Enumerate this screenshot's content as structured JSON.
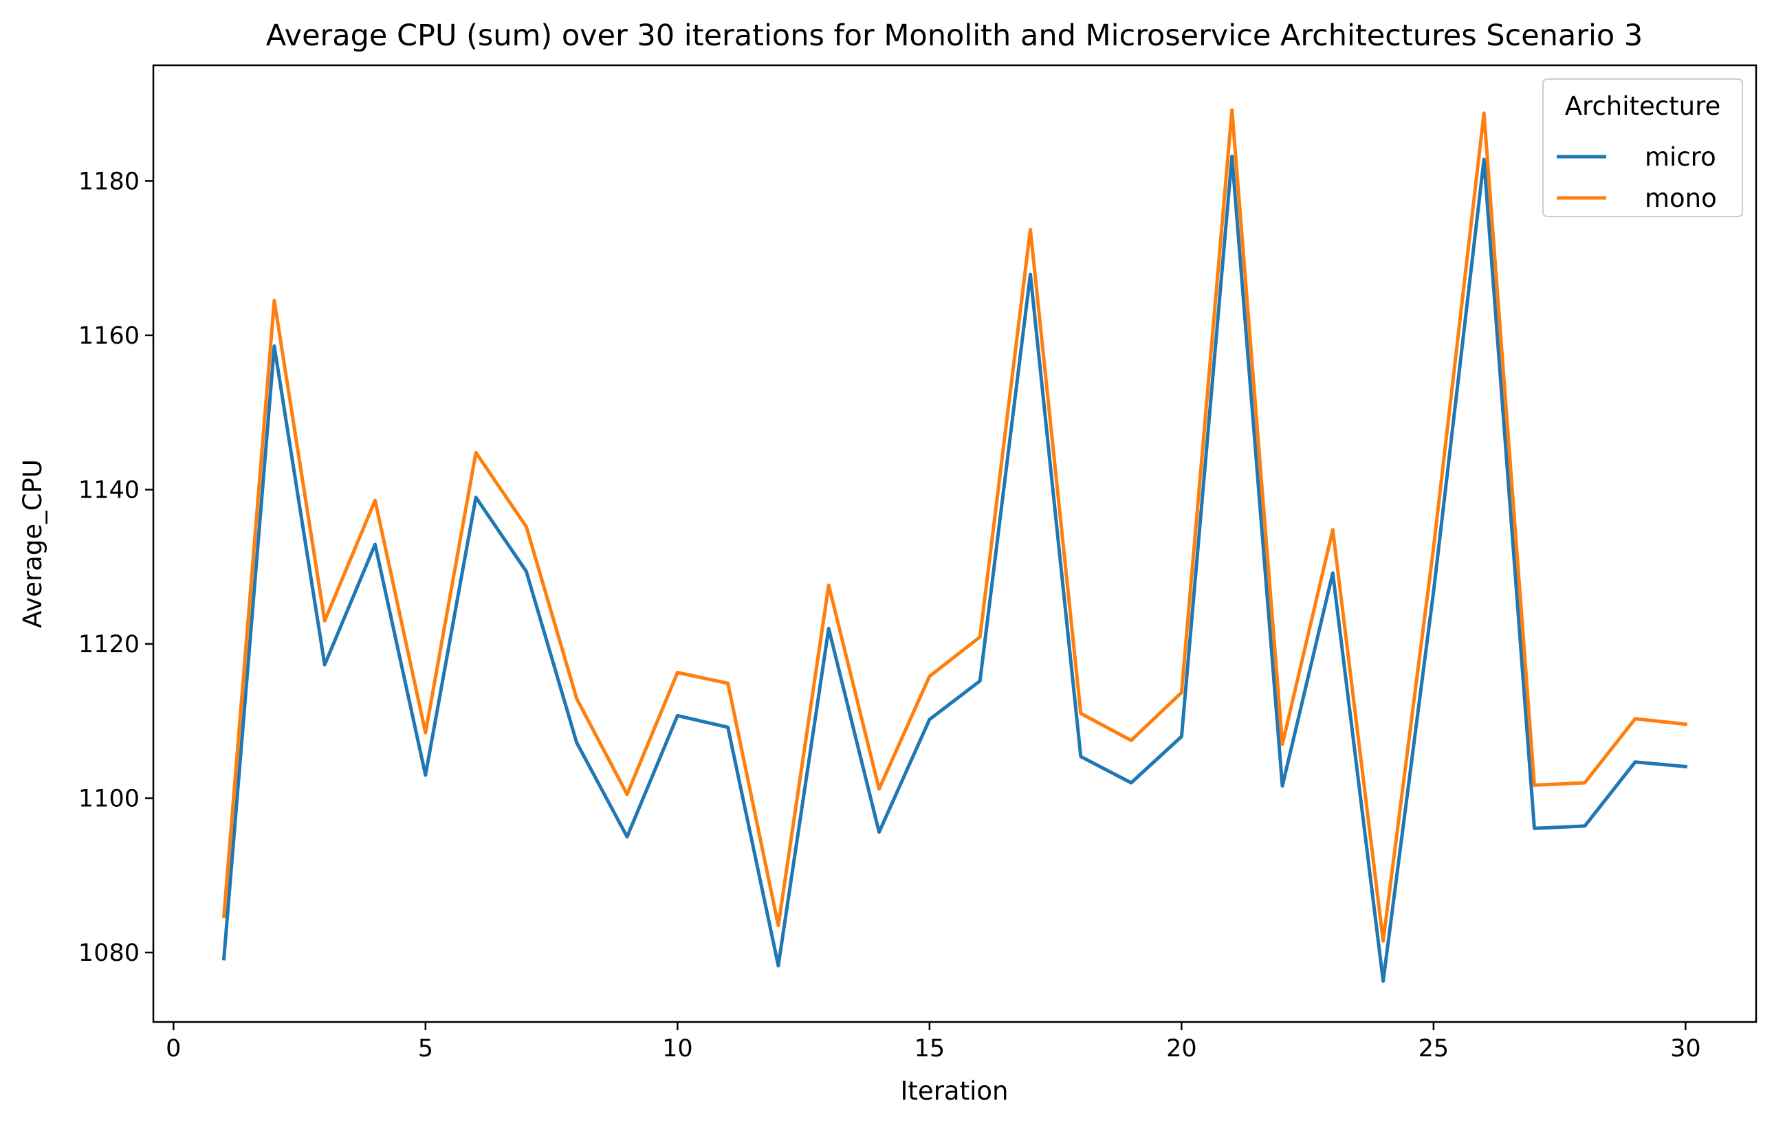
{
  "chart_data": {
    "type": "line",
    "title": "Average CPU (sum) over 30 iterations for Monolith and Microservice Architectures Scenario 3",
    "xlabel": "Iteration",
    "ylabel": "Average_CPU",
    "xlim": [
      -0.4,
      31.4
    ],
    "ylim": [
      1071,
      1195
    ],
    "xticks": [
      0,
      5,
      10,
      15,
      20,
      25,
      30
    ],
    "yticks": [
      1080,
      1100,
      1120,
      1140,
      1160,
      1180
    ],
    "grid": false,
    "legend": {
      "title": "Architecture",
      "placement": "top-right"
    },
    "x": [
      1,
      2,
      3,
      4,
      5,
      6,
      7,
      8,
      9,
      10,
      11,
      12,
      13,
      14,
      15,
      16,
      17,
      18,
      19,
      20,
      21,
      22,
      23,
      24,
      25,
      26,
      27,
      28,
      29,
      30
    ],
    "series": [
      {
        "name": "micro",
        "color": "#1f77b4",
        "values": [
          1079.2,
          1158.6,
          1117.3,
          1132.9,
          1103.0,
          1139.0,
          1129.4,
          1107.2,
          1095.0,
          1110.7,
          1109.2,
          1078.3,
          1122.0,
          1095.6,
          1110.2,
          1115.2,
          1167.9,
          1105.4,
          1102.0,
          1108.0,
          1183.2,
          1101.6,
          1129.2,
          1076.3,
          1126.8,
          1182.8,
          1096.1,
          1096.4,
          1104.7,
          1104.1
        ]
      },
      {
        "name": "mono",
        "color": "#ff7f0e",
        "values": [
          1084.7,
          1164.5,
          1123.0,
          1138.6,
          1108.5,
          1144.8,
          1135.2,
          1112.9,
          1100.5,
          1116.3,
          1114.9,
          1083.5,
          1127.6,
          1101.2,
          1115.8,
          1120.9,
          1173.7,
          1111.0,
          1107.5,
          1113.7,
          1189.2,
          1107.0,
          1134.8,
          1081.5,
          1132.5,
          1188.8,
          1101.7,
          1102.0,
          1110.3,
          1109.6
        ]
      }
    ]
  }
}
